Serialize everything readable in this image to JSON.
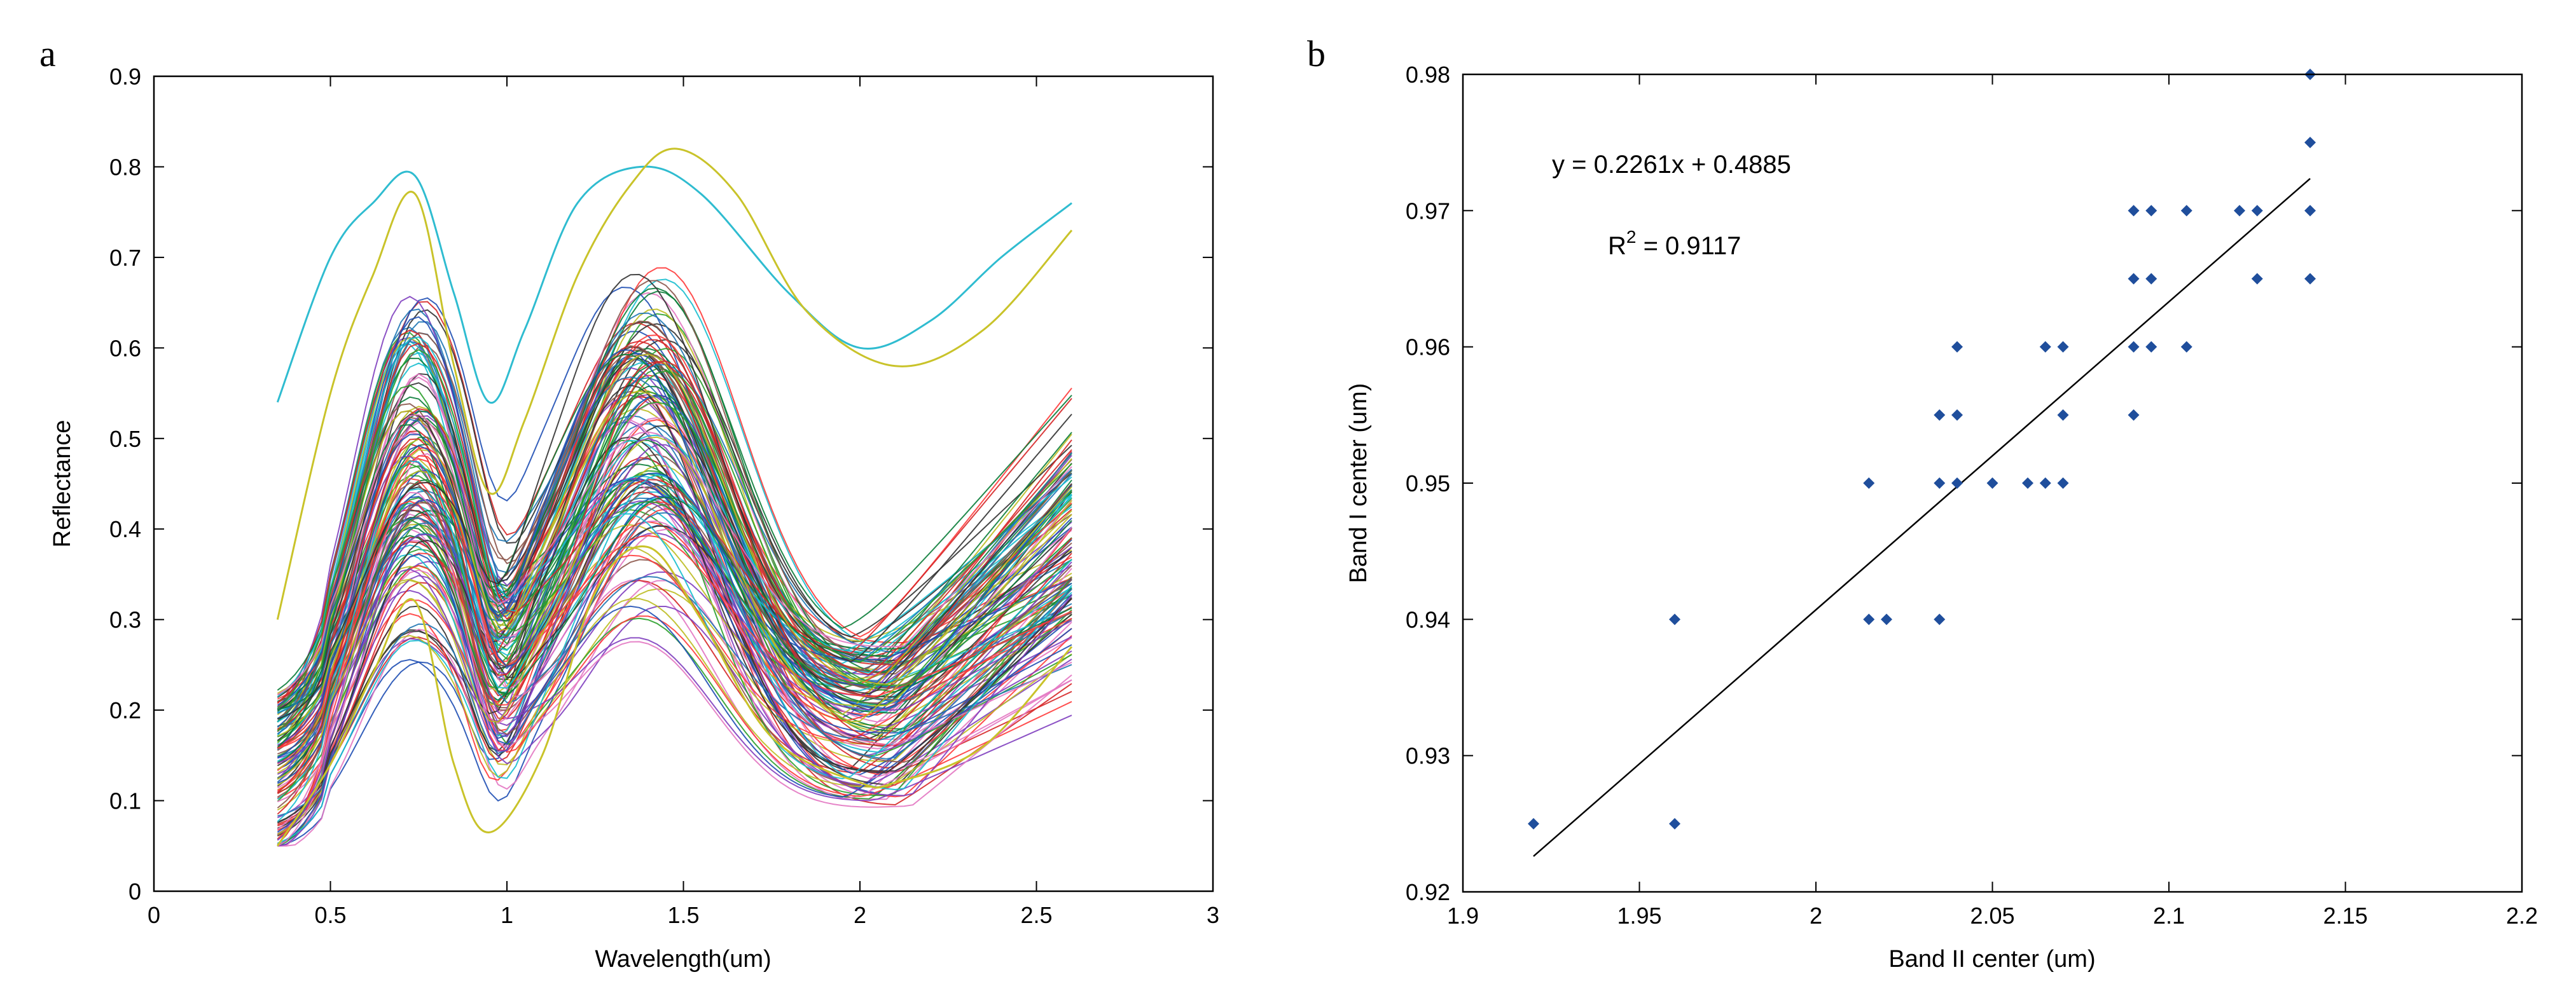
{
  "chart_data": [
    {
      "panel": "a",
      "type": "line",
      "title": "",
      "xlabel": "Wavelength(um)",
      "ylabel": "Reflectance",
      "xlim": [
        0,
        3
      ],
      "ylim": [
        0,
        0.9
      ],
      "xticks": [
        0,
        0.5,
        1,
        1.5,
        2,
        2.5,
        3
      ],
      "xtick_labels": [
        "0",
        "0.5",
        "1",
        "1.5",
        "2",
        "2.5",
        "3"
      ],
      "yticks": [
        0,
        0.1,
        0.2,
        0.3,
        0.4,
        0.5,
        0.6,
        0.7,
        0.8,
        0.9
      ],
      "ytick_labels": [
        "0",
        "0.1",
        "0.2",
        "0.3",
        "0.4",
        "0.5",
        "0.6",
        "0.7",
        "0.8",
        "0.9"
      ],
      "x_range_of_spectra": [
        0.35,
        2.6
      ],
      "highlighted_series": [
        {
          "name": "brightest cyan spectrum",
          "color": "#2fbcd0",
          "x": [
            0.35,
            0.5,
            0.62,
            0.74,
            0.85,
            0.95,
            1.05,
            1.2,
            1.38,
            1.55,
            1.8,
            2.0,
            2.2,
            2.4,
            2.6
          ],
          "y": [
            0.54,
            0.7,
            0.76,
            0.79,
            0.66,
            0.54,
            0.62,
            0.76,
            0.8,
            0.77,
            0.66,
            0.6,
            0.63,
            0.7,
            0.76
          ]
        },
        {
          "name": "high-contrast yellow spectrum",
          "color": "#c9c32a",
          "x": [
            0.35,
            0.5,
            0.62,
            0.74,
            0.85,
            0.95,
            1.05,
            1.2,
            1.35,
            1.48,
            1.65,
            1.85,
            2.1,
            2.35,
            2.6
          ],
          "y": [
            0.3,
            0.55,
            0.68,
            0.77,
            0.58,
            0.44,
            0.52,
            0.68,
            0.78,
            0.82,
            0.77,
            0.64,
            0.58,
            0.62,
            0.73
          ]
        },
        {
          "name": "darkest yellow spectrum",
          "color": "#c9c32a",
          "x": [
            0.35,
            0.5,
            0.62,
            0.74,
            0.85,
            0.95,
            1.1,
            1.25,
            1.4,
            1.55,
            1.75,
            2.0,
            2.1,
            2.35,
            2.6
          ],
          "y": [
            0.05,
            0.14,
            0.24,
            0.32,
            0.14,
            0.065,
            0.15,
            0.33,
            0.38,
            0.3,
            0.17,
            0.12,
            0.12,
            0.16,
            0.27
          ]
        }
      ],
      "bundle_palette": [
        "#d62728",
        "#1f4fb4",
        "#2ca02c",
        "#17becf",
        "#bcbd22",
        "#7f3fbf",
        "#333333",
        "#e377c2",
        "#0b7d3a",
        "#8c564b",
        "#1f77b4",
        "#ff3b3b"
      ],
      "bundle_count": 140
    },
    {
      "panel": "b",
      "type": "scatter",
      "title": "",
      "xlabel": "Band II center (um)",
      "ylabel": "Band I center (um)",
      "xlim": [
        1.9,
        2.2
      ],
      "ylim": [
        0.92,
        0.98
      ],
      "xticks": [
        1.9,
        1.95,
        2.0,
        2.05,
        2.1,
        2.15,
        2.2
      ],
      "xtick_labels": [
        "1.9",
        "1.95",
        "2",
        "2.05",
        "2.1",
        "2.15",
        "2.2"
      ],
      "yticks": [
        0.92,
        0.93,
        0.94,
        0.95,
        0.96,
        0.97,
        0.98
      ],
      "ytick_labels": [
        "0.92",
        "0.93",
        "0.94",
        "0.95",
        "0.96",
        "0.97",
        "0.98"
      ],
      "point_color": "#1f4e9c",
      "points": [
        [
          1.92,
          0.925
        ],
        [
          1.96,
          0.925
        ],
        [
          1.96,
          0.94
        ],
        [
          2.015,
          0.95
        ],
        [
          2.015,
          0.94
        ],
        [
          2.02,
          0.94
        ],
        [
          2.035,
          0.94
        ],
        [
          2.035,
          0.955
        ],
        [
          2.035,
          0.95
        ],
        [
          2.04,
          0.96
        ],
        [
          2.04,
          0.955
        ],
        [
          2.04,
          0.95
        ],
        [
          2.05,
          0.95
        ],
        [
          2.06,
          0.95
        ],
        [
          2.065,
          0.96
        ],
        [
          2.065,
          0.95
        ],
        [
          2.07,
          0.96
        ],
        [
          2.07,
          0.955
        ],
        [
          2.07,
          0.95
        ],
        [
          2.09,
          0.97
        ],
        [
          2.09,
          0.965
        ],
        [
          2.09,
          0.96
        ],
        [
          2.09,
          0.955
        ],
        [
          2.095,
          0.97
        ],
        [
          2.095,
          0.965
        ],
        [
          2.095,
          0.96
        ],
        [
          2.105,
          0.97
        ],
        [
          2.105,
          0.96
        ],
        [
          2.12,
          0.97
        ],
        [
          2.125,
          0.97
        ],
        [
          2.125,
          0.965
        ],
        [
          2.14,
          0.98
        ],
        [
          2.14,
          0.975
        ],
        [
          2.14,
          0.97
        ],
        [
          2.14,
          0.965
        ]
      ],
      "fit": {
        "slope": 0.2261,
        "intercept": 0.4885,
        "x_range": [
          1.92,
          2.14
        ],
        "color": "#000000"
      },
      "annotations": {
        "equation": "y = 0.2261x + 0.4885",
        "r2_prefix": "R",
        "r2_exponent": "2",
        "r2_value": " = 0.9117"
      }
    }
  ],
  "panels": {
    "a_label": "a",
    "b_label": "b"
  }
}
